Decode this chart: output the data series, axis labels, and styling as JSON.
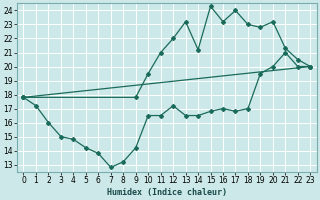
{
  "xlabel": "Humidex (Indice chaleur)",
  "bg_color": "#cde8e8",
  "grid_color": "#b8d8d8",
  "line_color": "#1a6b5a",
  "xlim": [
    -0.5,
    23.5
  ],
  "ylim": [
    12.5,
    24.5
  ],
  "xticks": [
    0,
    1,
    2,
    3,
    4,
    5,
    6,
    7,
    8,
    9,
    10,
    11,
    12,
    13,
    14,
    15,
    16,
    17,
    18,
    19,
    20,
    21,
    22,
    23
  ],
  "yticks": [
    13,
    14,
    15,
    16,
    17,
    18,
    19,
    20,
    21,
    22,
    23,
    24
  ],
  "line1_x": [
    0,
    1,
    2,
    3,
    4,
    5,
    6,
    7,
    8,
    9,
    10,
    11,
    12,
    13,
    14,
    15,
    16,
    17,
    18,
    19,
    20,
    21,
    22,
    23
  ],
  "line1_y": [
    17.8,
    17.2,
    16.0,
    15.0,
    14.8,
    14.2,
    13.8,
    12.8,
    13.2,
    14.2,
    16.5,
    16.5,
    17.2,
    16.5,
    16.5,
    16.8,
    17.0,
    16.8,
    17.0,
    19.5,
    20.0,
    21.0,
    20.0,
    20.0
  ],
  "line2_x": [
    0,
    9,
    10,
    11,
    12,
    13,
    14,
    15,
    16,
    17,
    18,
    19,
    20,
    21,
    22,
    23
  ],
  "line2_y": [
    17.8,
    17.8,
    19.5,
    21.0,
    22.0,
    23.2,
    21.2,
    24.3,
    23.2,
    24.0,
    23.0,
    22.8,
    23.2,
    21.3,
    20.5,
    20.0
  ],
  "line3_x": [
    0,
    23
  ],
  "line3_y": [
    17.8,
    20.0
  ]
}
